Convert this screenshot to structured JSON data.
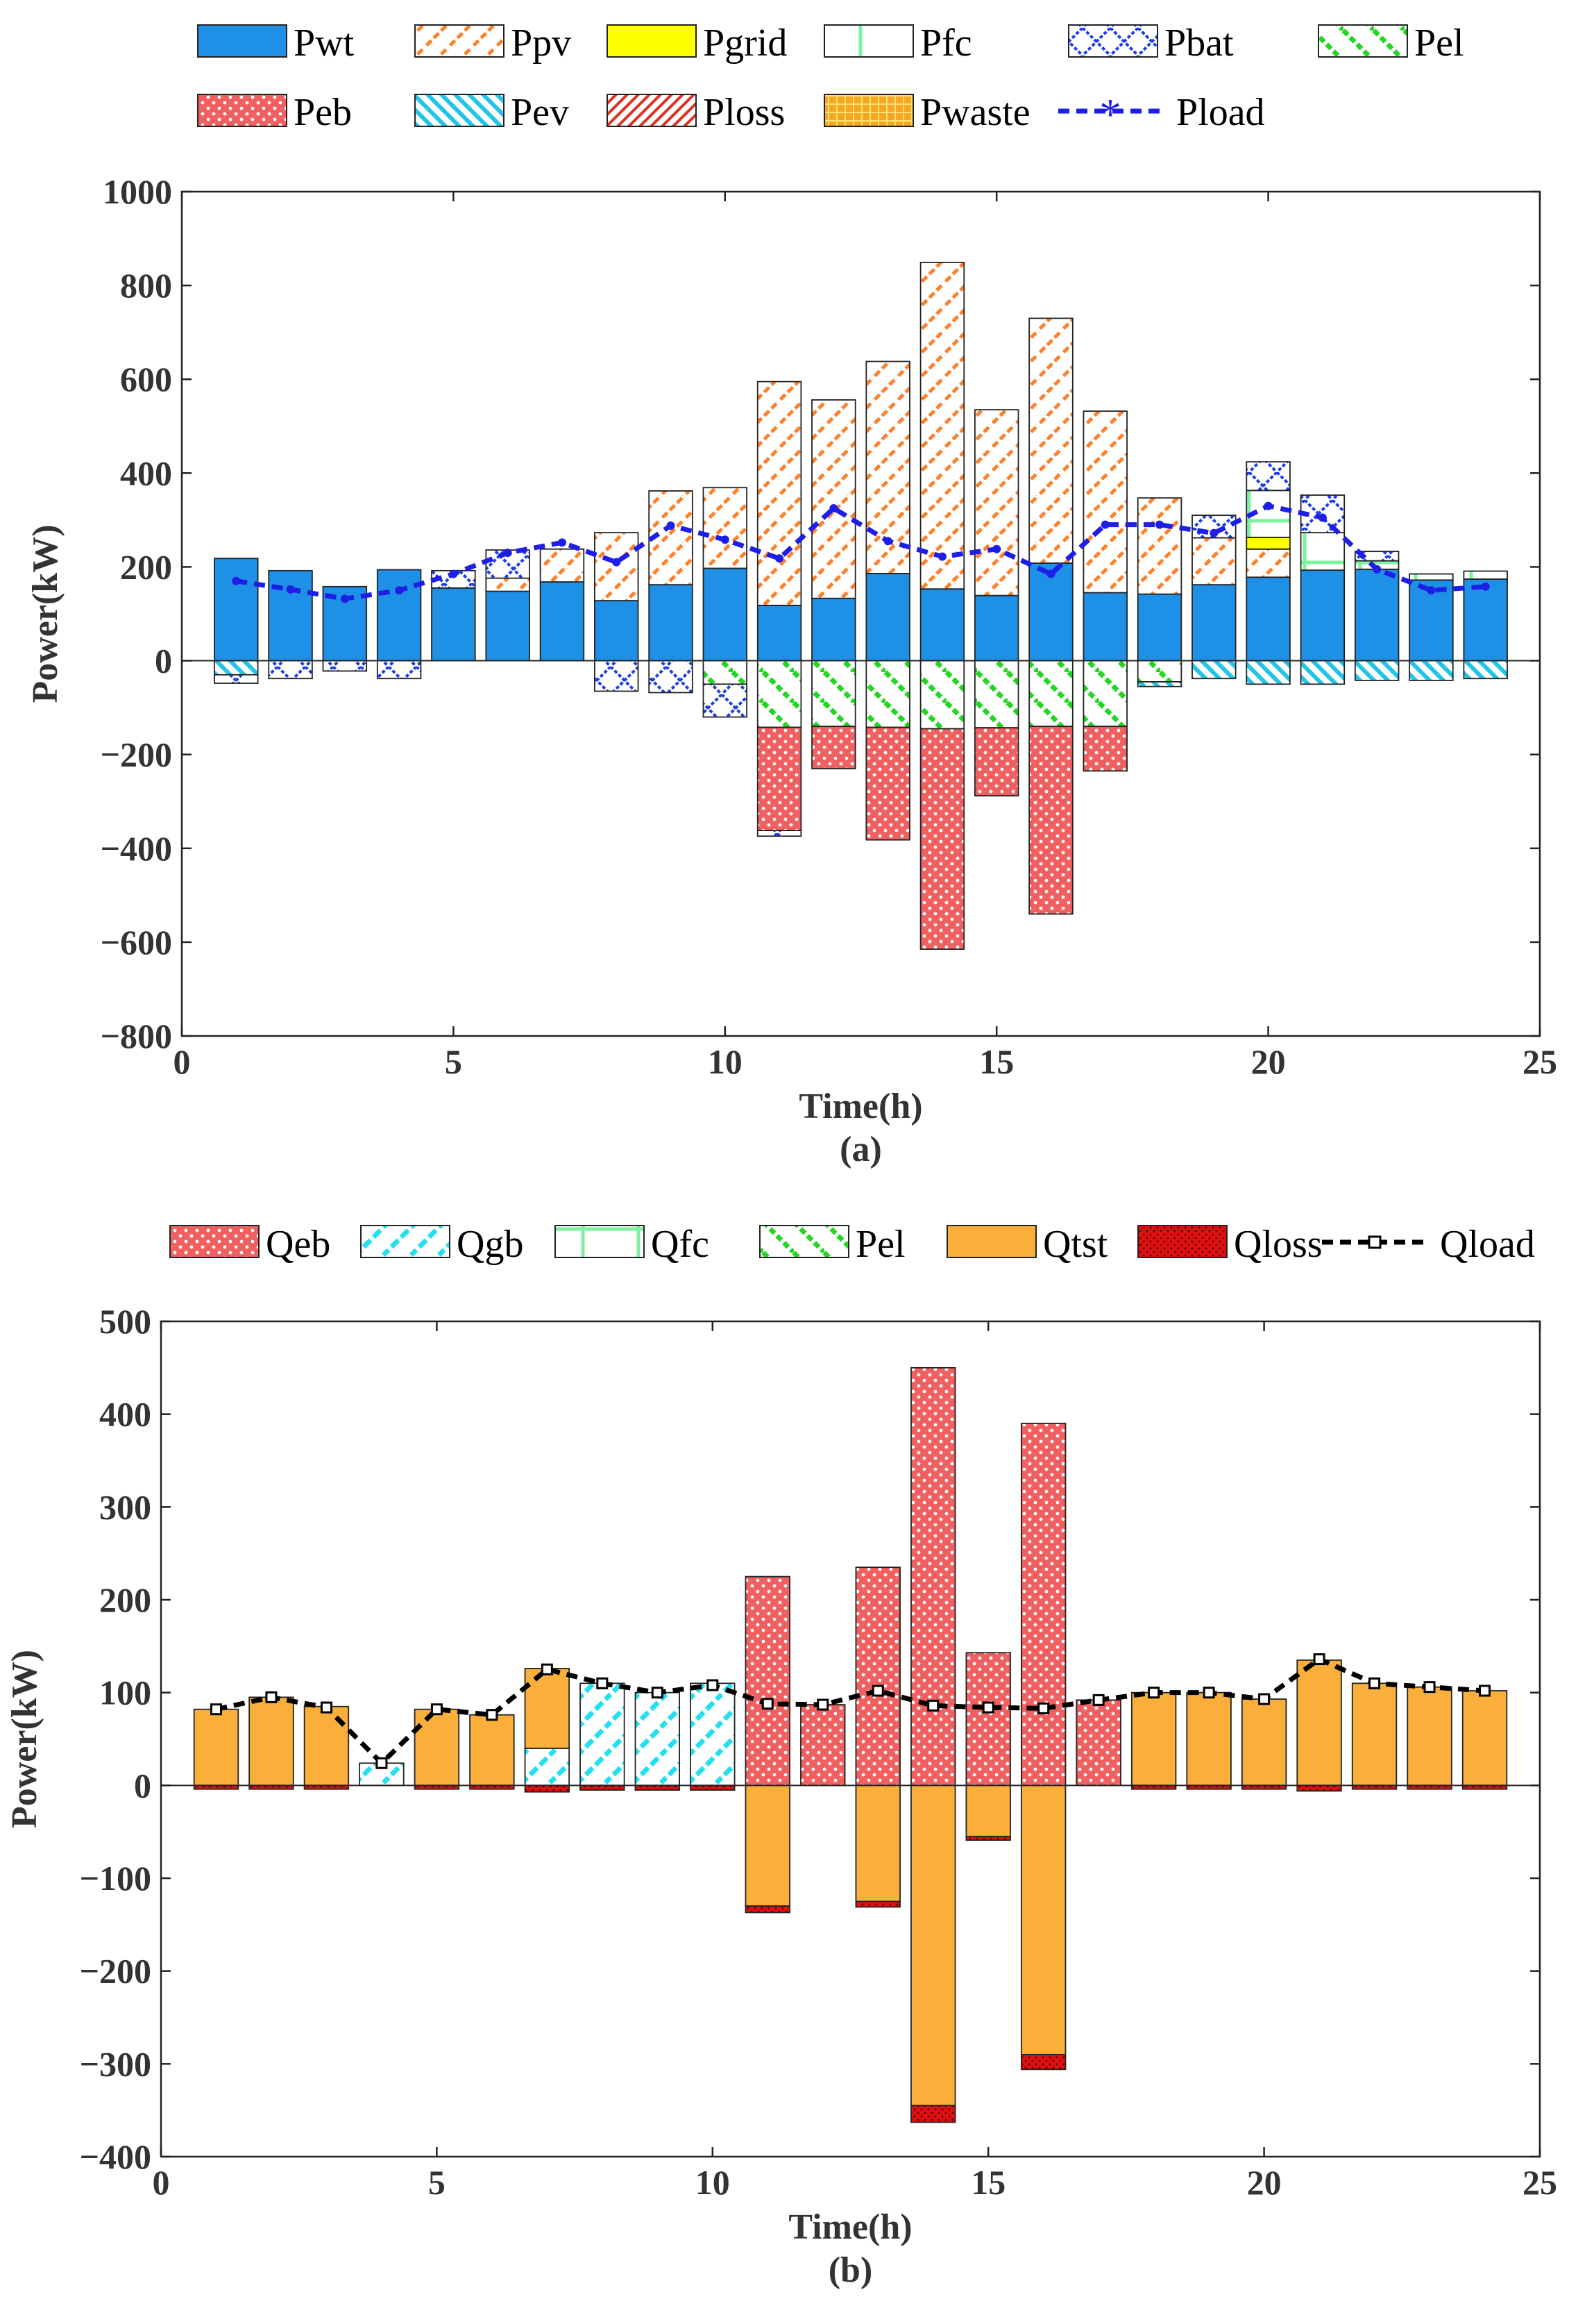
{
  "chart_data": [
    {
      "type": "bar",
      "stacked": true,
      "panel_label": "(a)",
      "xlabel": "Time(h)",
      "ylabel": "Power(kW)",
      "xlim": [
        0,
        25
      ],
      "ylim": [
        -800,
        1000
      ],
      "xticks": [
        0,
        5,
        10,
        15,
        20,
        25
      ],
      "yticks": [
        -800,
        -600,
        -400,
        -200,
        0,
        200,
        400,
        600,
        800,
        1000
      ],
      "ytick_labels": [
        "−800",
        "−600",
        "−400",
        "−200",
        "0",
        "200",
        "400",
        "600",
        "800",
        "1000"
      ],
      "categories": [
        1,
        2,
        3,
        4,
        5,
        6,
        7,
        8,
        9,
        10,
        11,
        12,
        13,
        14,
        15,
        16,
        17,
        18,
        19,
        20,
        21,
        22,
        23,
        24
      ],
      "legend_position": "top",
      "series": [
        {
          "name": "Pwt",
          "color": "#1E90E6",
          "pattern": "solid",
          "values": [
            218,
            192,
            158,
            194,
            155,
            148,
            168,
            128,
            162,
            197,
            118,
            133,
            186,
            153,
            139,
            208,
            145,
            142,
            162,
            178,
            193,
            195,
            172,
            174
          ]
        },
        {
          "name": "Ppv",
          "color": "#FF7F2A",
          "pattern": "diag",
          "values": [
            0,
            0,
            0,
            0,
            0,
            28,
            70,
            145,
            200,
            172,
            477,
            423,
            452,
            696,
            396,
            522,
            387,
            205,
            100,
            60,
            0,
            0,
            0,
            0
          ]
        },
        {
          "name": "Pgrid",
          "color": "#FFFF00",
          "pattern": "solid",
          "values": [
            0,
            0,
            0,
            0,
            0,
            0,
            0,
            0,
            0,
            0,
            0,
            0,
            0,
            0,
            0,
            0,
            0,
            0,
            0,
            25,
            0,
            0,
            0,
            0
          ]
        },
        {
          "name": "Pfc",
          "color": "#7CF2A0",
          "pattern": "cross",
          "values": [
            0,
            0,
            0,
            0,
            0,
            0,
            0,
            0,
            0,
            0,
            0,
            0,
            0,
            0,
            0,
            0,
            0,
            0,
            0,
            100,
            80,
            18,
            13,
            17
          ]
        },
        {
          "name": "Pbat",
          "color": "#1E3FE6",
          "pattern": "xhatch",
          "values": [
            0,
            0,
            0,
            0,
            37,
            60,
            0,
            0,
            0,
            0,
            0,
            0,
            0,
            0,
            0,
            0,
            0,
            0,
            48,
            61,
            80,
            20,
            0,
            0
          ]
        },
        {
          "name": "Pel",
          "color": "#22D622",
          "pattern": "diag2",
          "values": [
            0,
            0,
            0,
            0,
            0,
            0,
            0,
            0,
            0,
            -50,
            -142,
            -140,
            -142,
            -145,
            -143,
            -140,
            -140,
            -45,
            0,
            0,
            0,
            0,
            0,
            0
          ]
        },
        {
          "name": "Peb",
          "color": "#F06060",
          "pattern": "dots",
          "values": [
            0,
            0,
            0,
            0,
            0,
            0,
            0,
            0,
            0,
            0,
            -220,
            -90,
            -240,
            -470,
            -145,
            -400,
            -95,
            0,
            0,
            0,
            0,
            0,
            0,
            0
          ]
        },
        {
          "name": "Pev",
          "color": "#22C5E6",
          "pattern": "diag2",
          "values": [
            -30,
            0,
            0,
            0,
            0,
            0,
            0,
            0,
            0,
            0,
            0,
            0,
            0,
            0,
            0,
            0,
            0,
            -10,
            -38,
            -50,
            -50,
            -42,
            -42,
            -38
          ]
        },
        {
          "name": "Ploss",
          "color": "#E03020",
          "pattern": "diag",
          "values": [
            0,
            0,
            0,
            0,
            0,
            0,
            0,
            0,
            0,
            0,
            0,
            0,
            0,
            0,
            0,
            0,
            0,
            0,
            0,
            0,
            0,
            0,
            0,
            0
          ]
        },
        {
          "name": "Pwaste",
          "color": "#F5A623",
          "pattern": "grid",
          "values": [
            0,
            0,
            0,
            0,
            0,
            0,
            0,
            0,
            0,
            0,
            0,
            0,
            0,
            0,
            0,
            0,
            0,
            0,
            0,
            0,
            0,
            0,
            0,
            0
          ]
        }
      ],
      "extra_negative_bat": [
        -18,
        -38,
        -22,
        -38,
        0,
        0,
        0,
        -65,
        -68,
        -70,
        -12,
        0,
        0,
        0,
        0,
        0,
        0,
        0,
        0,
        0,
        0,
        0,
        0,
        0
      ],
      "line": {
        "name": "Pload",
        "color": "#1E1EE6",
        "marker": "asterisk",
        "values": [
          170,
          152,
          132,
          150,
          185,
          230,
          252,
          210,
          288,
          258,
          218,
          325,
          255,
          222,
          238,
          185,
          290,
          290,
          272,
          330,
          305,
          195,
          150,
          158
        ]
      }
    },
    {
      "type": "bar",
      "stacked": true,
      "panel_label": "(b)",
      "xlabel": "Time(h)",
      "ylabel": "Power(kW)",
      "xlim": [
        0,
        25
      ],
      "ylim": [
        -400,
        500
      ],
      "xticks": [
        0,
        5,
        10,
        15,
        20,
        25
      ],
      "yticks": [
        -400,
        -300,
        -200,
        -100,
        0,
        100,
        200,
        300,
        400,
        500
      ],
      "ytick_labels": [
        "−400",
        "−300",
        "−200",
        "−100",
        "0",
        "100",
        "200",
        "300",
        "400",
        "500"
      ],
      "categories": [
        1,
        2,
        3,
        4,
        5,
        6,
        7,
        8,
        9,
        10,
        11,
        12,
        13,
        14,
        15,
        16,
        17,
        18,
        19,
        20,
        21,
        22,
        23,
        24
      ],
      "legend_position": "top",
      "series": [
        {
          "name": "Qeb",
          "color": "#F06060",
          "pattern": "dots",
          "values": [
            0,
            0,
            0,
            0,
            0,
            0,
            0,
            0,
            0,
            0,
            225,
            87,
            235,
            450,
            143,
            390,
            92,
            0,
            0,
            0,
            0,
            0,
            0,
            0
          ]
        },
        {
          "name": "Qgb",
          "color": "#22E0F0",
          "pattern": "diag",
          "values": [
            0,
            0,
            0,
            24,
            0,
            0,
            40,
            110,
            100,
            110,
            0,
            0,
            0,
            0,
            0,
            0,
            0,
            0,
            0,
            0,
            0,
            0,
            0,
            0
          ]
        },
        {
          "name": "Qfc",
          "color": "#7CF2A0",
          "pattern": "cross",
          "values": [
            0,
            0,
            0,
            0,
            0,
            0,
            0,
            0,
            0,
            0,
            0,
            0,
            0,
            0,
            0,
            0,
            0,
            0,
            0,
            0,
            0,
            0,
            0,
            0
          ]
        },
        {
          "name": "Pel",
          "color": "#22D622",
          "pattern": "diag2",
          "values": [
            0,
            0,
            0,
            0,
            0,
            0,
            0,
            0,
            0,
            0,
            0,
            0,
            0,
            0,
            0,
            0,
            0,
            0,
            0,
            0,
            0,
            0,
            0,
            0
          ]
        },
        {
          "name": "Qtst",
          "color": "#F9AF3A",
          "pattern": "solid",
          "values": [
            82,
            95,
            85,
            0,
            82,
            76,
            86,
            0,
            0,
            0,
            -130,
            0,
            -125,
            -345,
            -55,
            -290,
            0,
            100,
            100,
            93,
            135,
            110,
            106,
            102
          ]
        },
        {
          "name": "Qloss",
          "color": "#E01010",
          "pattern": "dots",
          "values": [
            -4,
            -4,
            -4,
            0,
            -4,
            -4,
            -7,
            -5,
            -5,
            -5,
            -7,
            0,
            -6,
            -18,
            -4,
            -16,
            0,
            -4,
            -4,
            -4,
            -6,
            -4,
            -4,
            -4
          ]
        }
      ],
      "line": {
        "name": "Qload",
        "color": "#000000",
        "marker": "square",
        "values": [
          82,
          95,
          84,
          24,
          82,
          76,
          125,
          110,
          100,
          108,
          88,
          87,
          102,
          86,
          84,
          83,
          92,
          100,
          100,
          93,
          136,
          110,
          106,
          102
        ]
      }
    }
  ],
  "legend_a": {
    "row1": [
      "Pwt",
      "Ppv",
      "Pgrid",
      "Pfc",
      "Pbat",
      "Pel"
    ],
    "row2": [
      "Peb",
      "Pev",
      "Ploss",
      "Pwaste",
      "Pload"
    ]
  },
  "legend_b": [
    "Qeb",
    "Qgb",
    "Qfc",
    "Pel",
    "Qtst",
    "Qloss",
    "Qload"
  ]
}
